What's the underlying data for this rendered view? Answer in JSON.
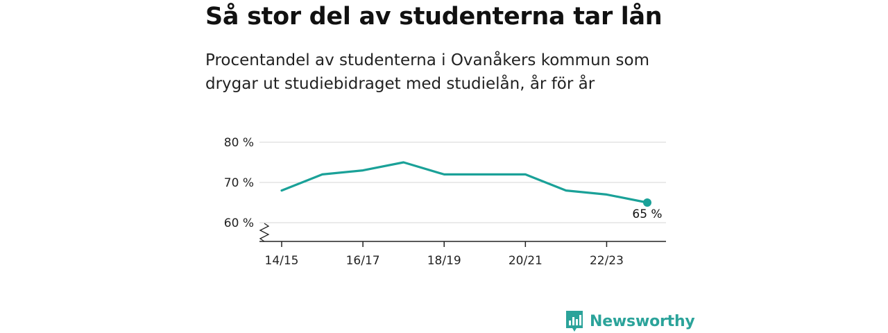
{
  "header": {
    "title": "Så stor del av studenterna tar lån",
    "subtitle": "Procentandel av studenterna i Ovanåkers kommun som drygar ut studiebidraget med studielån, år för år"
  },
  "chart_data": {
    "type": "line",
    "x": [
      "14/15",
      "15/16",
      "16/17",
      "17/18",
      "18/19",
      "19/20",
      "20/21",
      "21/22",
      "22/23",
      "23/24"
    ],
    "series": [
      {
        "values": [
          68,
          72,
          73,
          75,
          72,
          72,
          72,
          68,
          67,
          65
        ]
      }
    ],
    "x_tick_labels": [
      "14/15",
      "16/17",
      "18/19",
      "20/21",
      "22/23"
    ],
    "y_ticks": [
      60,
      70,
      80
    ],
    "y_tick_labels": [
      "60 %",
      "70 %",
      "80 %"
    ],
    "ylim": [
      60,
      80
    ],
    "y_axis_break": true,
    "grid": true,
    "last_value_label": "65 %",
    "line_color": "#1aa198"
  },
  "brand": {
    "name": "Newsworthy",
    "icon": "bar-chart-badge-icon",
    "color": "#2ba39a"
  }
}
